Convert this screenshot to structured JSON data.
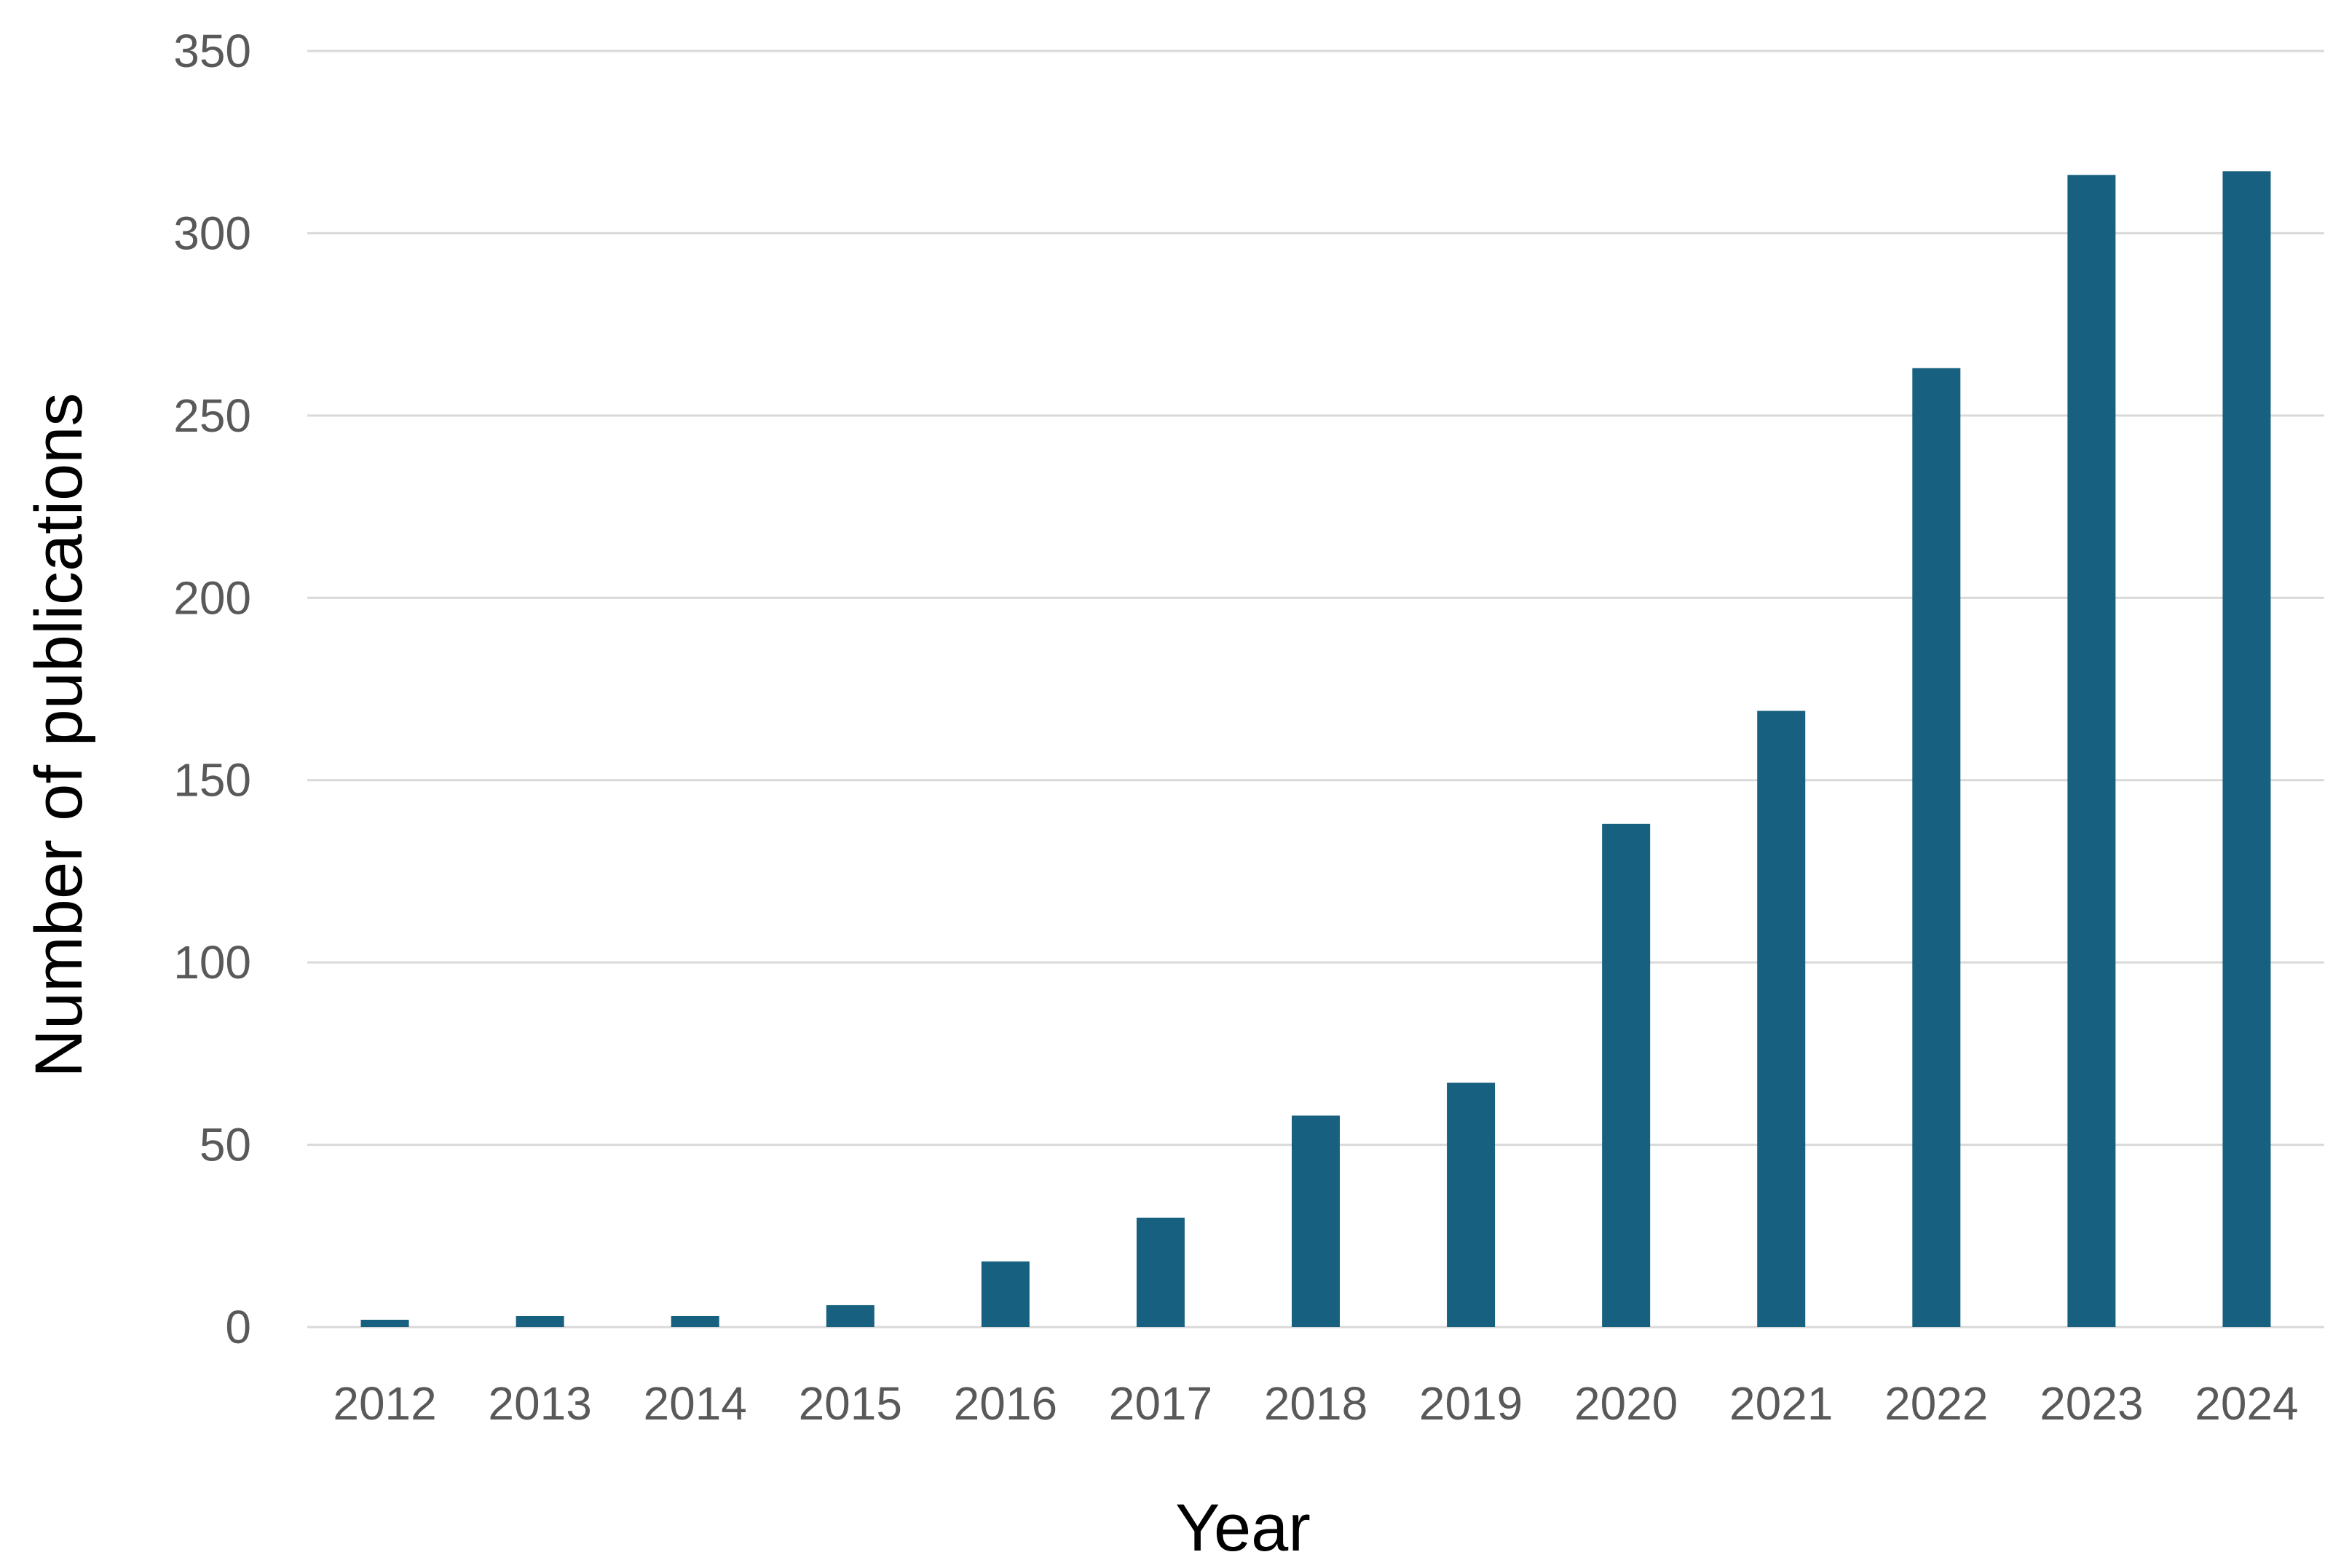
{
  "chart_data": {
    "type": "bar",
    "title": "",
    "xlabel": "Year",
    "ylabel": "Number of publications",
    "categories": [
      "2012",
      "2013",
      "2014",
      "2015",
      "2016",
      "2017",
      "2018",
      "2019",
      "2020",
      "2021",
      "2022",
      "2023",
      "2024"
    ],
    "values": [
      2,
      3,
      3,
      6,
      18,
      30,
      58,
      67,
      138,
      169,
      263,
      316,
      317
    ],
    "ylim": [
      0,
      350
    ],
    "yticks": [
      0,
      50,
      100,
      150,
      200,
      250,
      300,
      350
    ],
    "grid": true,
    "legend": "none",
    "colors": {
      "bar": "#17607f",
      "grid": "#d9d9d9",
      "tick_label": "#595959",
      "axis_title": "#000000"
    }
  }
}
